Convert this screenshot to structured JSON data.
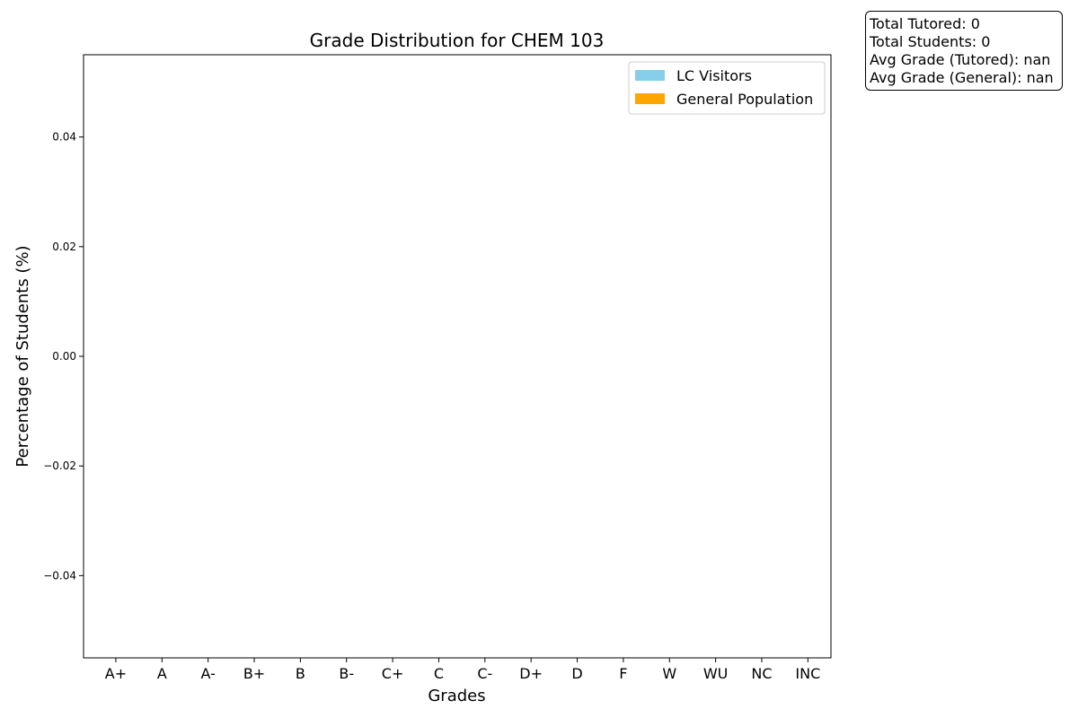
{
  "stats": {
    "total_tutored": "Total Tutored: 0",
    "total_students": "Total Students: 0",
    "avg_tutored": "Avg Grade (Tutored): nan",
    "avg_general": "Avg Grade (General): nan"
  },
  "colors": {
    "lc_visitors": "#87ceeb",
    "general_population": "#ffa500"
  },
  "chart_data": {
    "type": "bar",
    "title": "Grade Distribution for CHEM 103",
    "xlabel": "Grades",
    "ylabel": "Percentage of Students (%)",
    "categories": [
      "A+",
      "A",
      "A-",
      "B+",
      "B",
      "B-",
      "C+",
      "C",
      "C-",
      "D+",
      "D",
      "F",
      "W",
      "WU",
      "NC",
      "INC"
    ],
    "series": [
      {
        "name": "LC Visitors",
        "color": "#87ceeb",
        "values": [
          0,
          0,
          0,
          0,
          0,
          0,
          0,
          0,
          0,
          0,
          0,
          0,
          0,
          0,
          0,
          0
        ]
      },
      {
        "name": "General Population",
        "color": "#ffa500",
        "values": [
          0,
          0,
          0,
          0,
          0,
          0,
          0,
          0,
          0,
          0,
          0,
          0,
          0,
          0,
          0,
          0
        ]
      }
    ],
    "ylim": [
      -0.055,
      0.055
    ],
    "yticks": [
      -0.04,
      -0.02,
      0.0,
      0.02,
      0.04
    ],
    "ytick_labels": [
      "−0.04",
      "−0.02",
      "0.00",
      "0.02",
      "0.04"
    ],
    "grid": false,
    "legend_position": "top-right"
  }
}
